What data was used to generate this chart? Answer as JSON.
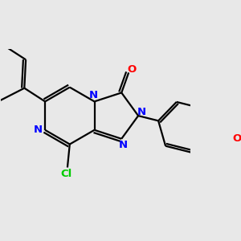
{
  "background_color": "#e8e8e8",
  "bond_color": "#000000",
  "nitrogen_color": "#0000ff",
  "oxygen_color": "#ff0000",
  "chlorine_color": "#00cc00",
  "line_width": 1.6,
  "figsize": [
    3.0,
    3.0
  ],
  "dpi": 100,
  "xlim": [
    -1.3,
    1.5
  ],
  "ylim": [
    -1.1,
    1.0
  ]
}
